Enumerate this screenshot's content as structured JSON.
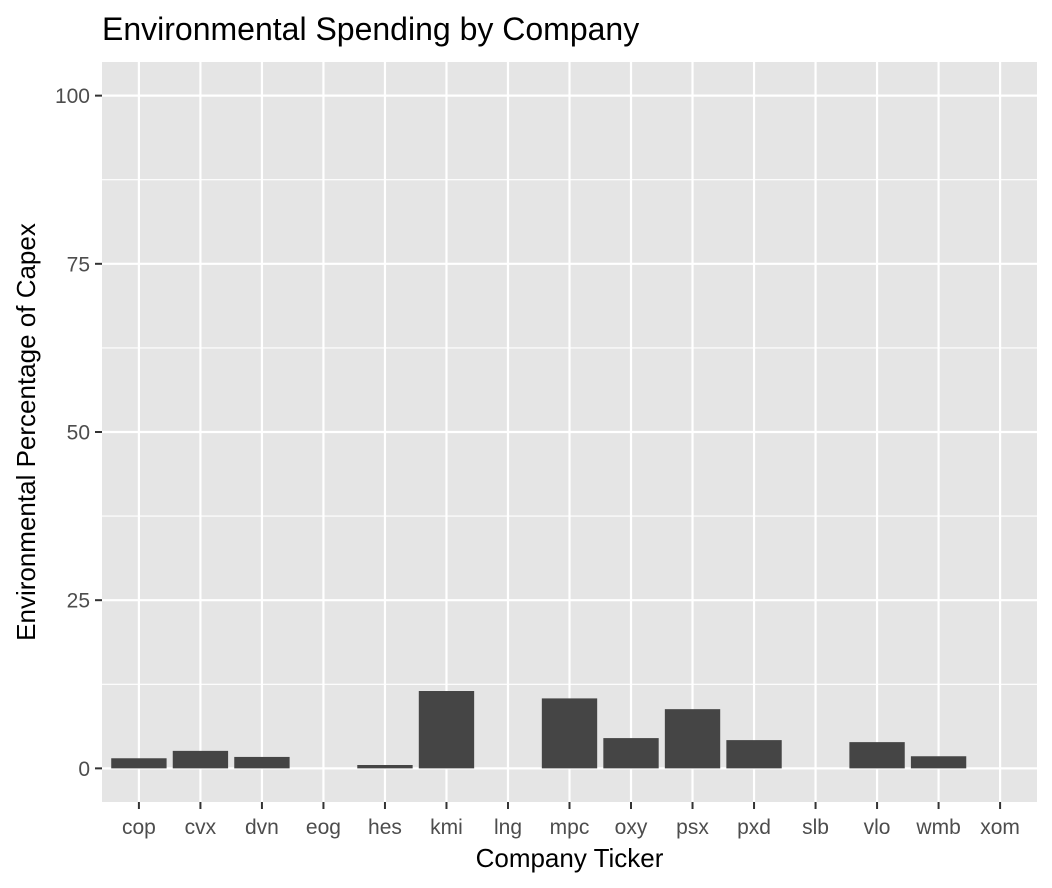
{
  "chart_data": {
    "type": "bar",
    "title": "Environmental Spending by Company",
    "xlabel": "Company Ticker",
    "ylabel": "Environmental Percentage of Capex",
    "categories": [
      "cop",
      "cvx",
      "dvn",
      "eog",
      "hes",
      "kmi",
      "lng",
      "mpc",
      "oxy",
      "psx",
      "pxd",
      "slb",
      "vlo",
      "wmb",
      "xom"
    ],
    "values": [
      1.5,
      2.6,
      1.7,
      0,
      0.5,
      11.5,
      0,
      10.4,
      4.5,
      8.8,
      4.2,
      0,
      3.9,
      1.8,
      0
    ],
    "ylim": [
      -5,
      105
    ],
    "yticks": [
      0,
      25,
      50,
      75,
      100
    ],
    "ytick_labels": [
      "0",
      "25",
      "50",
      "75",
      "100"
    ],
    "grid": true,
    "legend": "none",
    "colors": {
      "panel": "#e5e5e5",
      "grid": "#ffffff",
      "bar": "#454545",
      "tick_text": "#4d4d4d",
      "tick_mark": "#333333",
      "text": "#000000"
    }
  }
}
